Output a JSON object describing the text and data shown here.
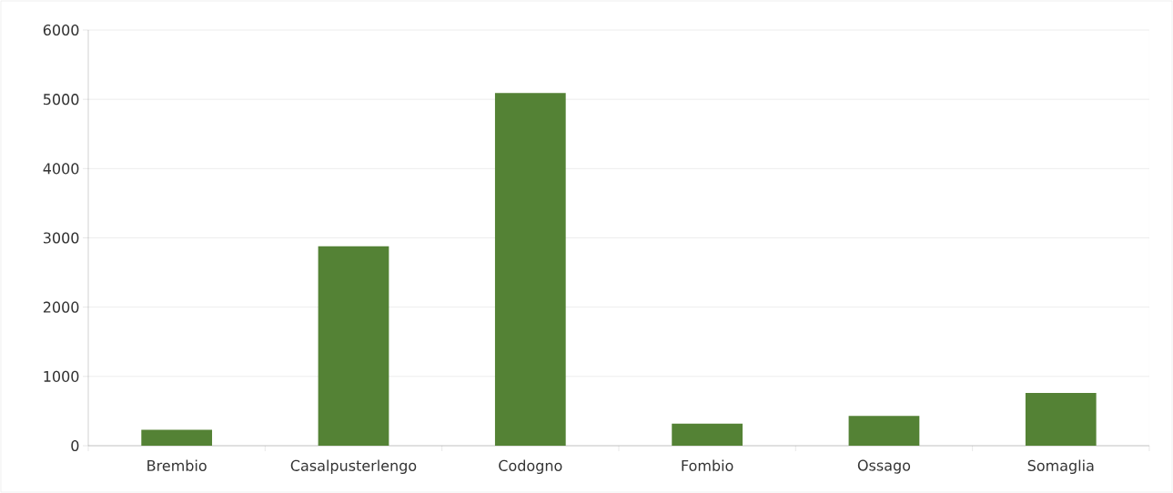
{
  "chart_data": {
    "type": "bar",
    "categories": [
      "Brembio",
      "Casalpusterlengo",
      "Codogno",
      "Fombio",
      "Ossago",
      "Somaglia"
    ],
    "values": [
      230,
      2880,
      5090,
      320,
      430,
      760
    ],
    "color": "#548235",
    "ylim": [
      0,
      6000
    ],
    "yticks": [
      0,
      1000,
      2000,
      3000,
      4000,
      5000,
      6000
    ],
    "grid": "y"
  }
}
